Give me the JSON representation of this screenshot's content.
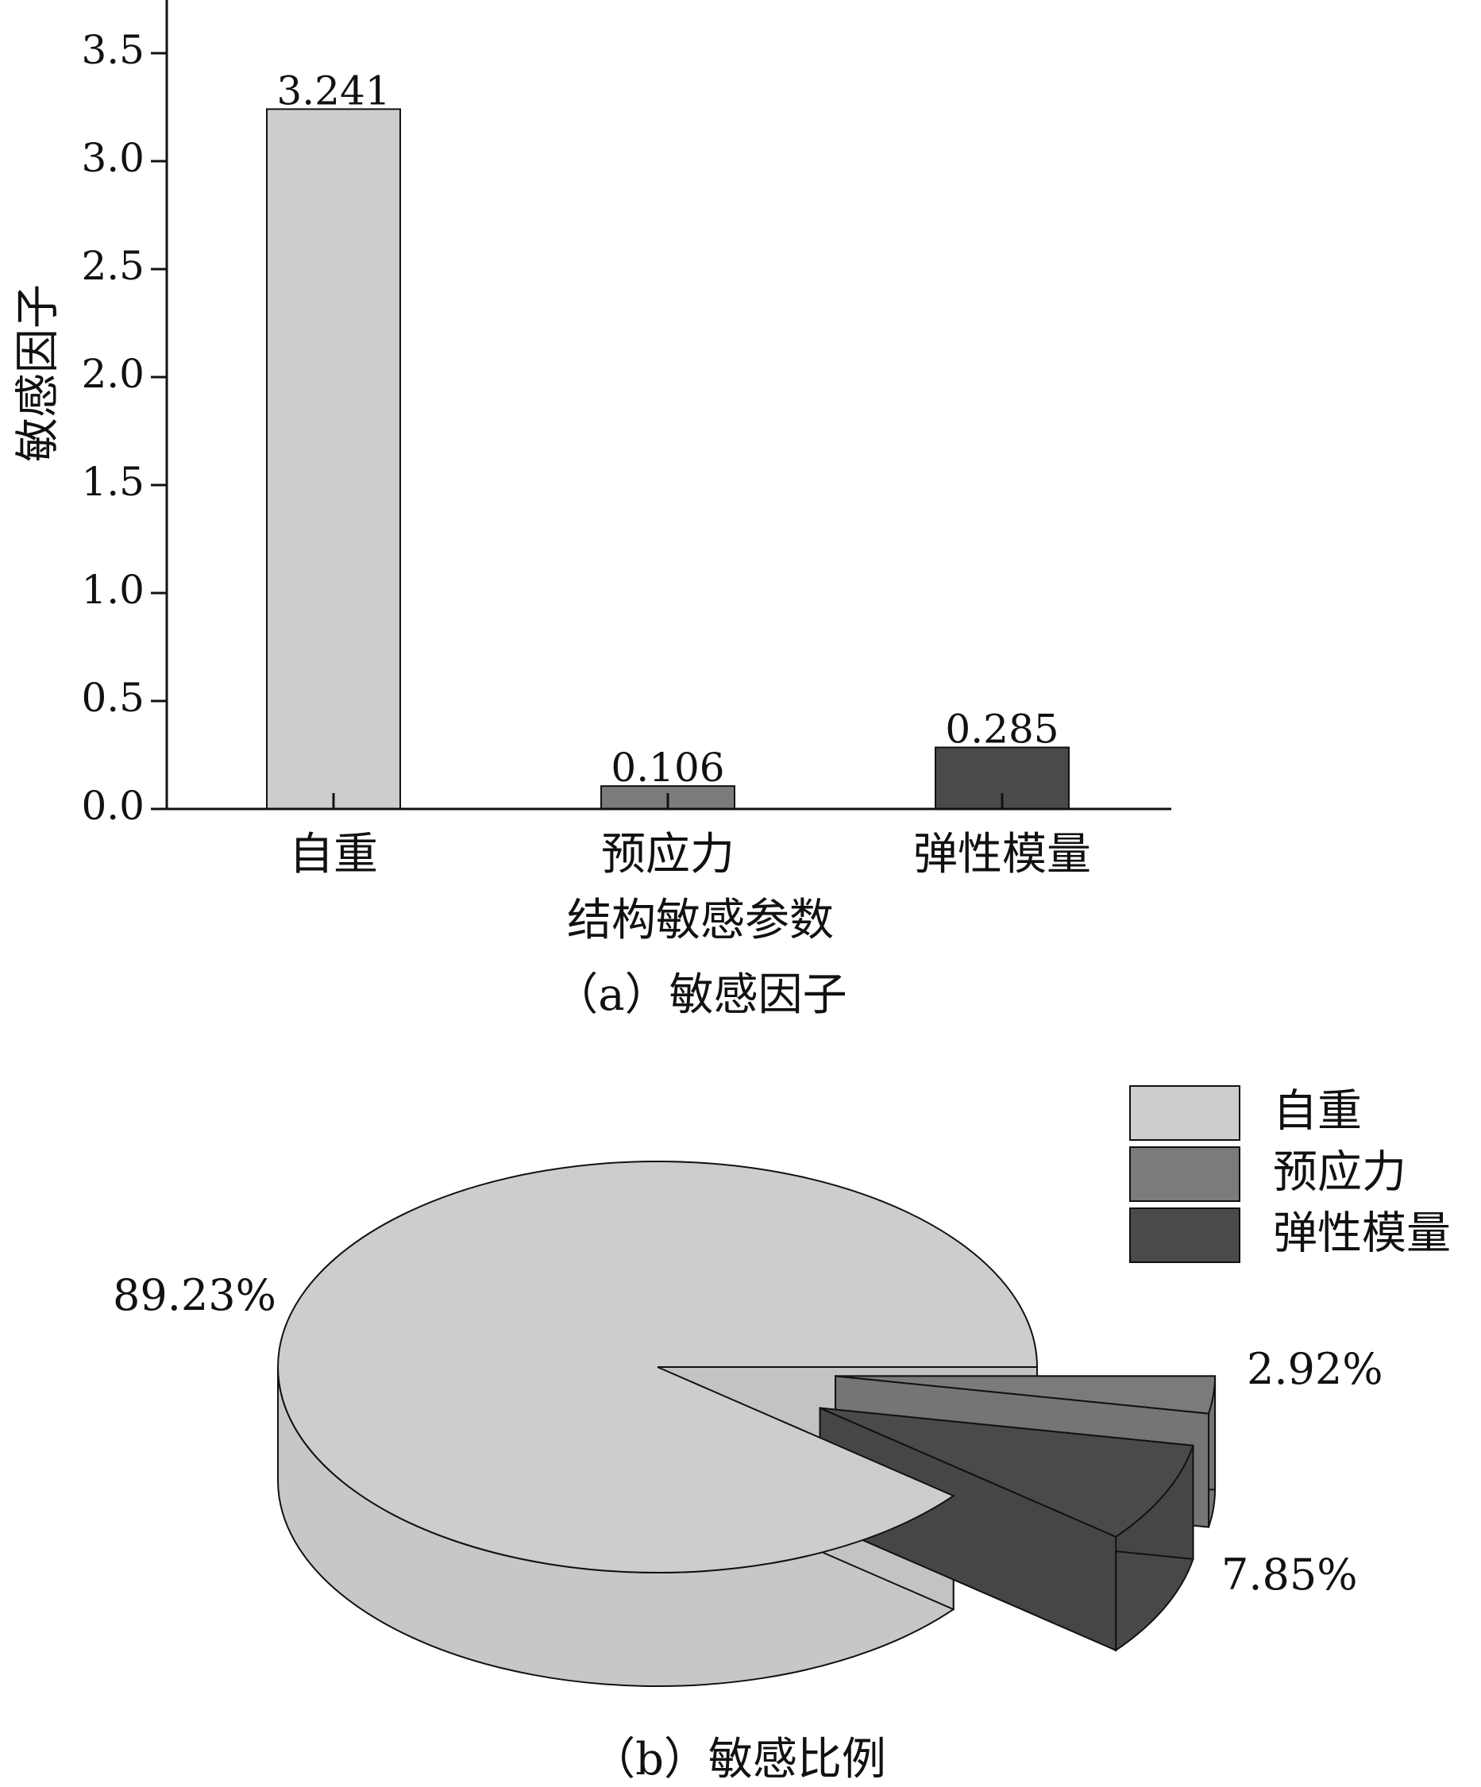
{
  "chart_data": [
    {
      "type": "bar",
      "caption": "（a）敏感因子",
      "categories": [
        "自重",
        "预应力",
        "弹性模量"
      ],
      "values": [
        3.241,
        0.106,
        0.285
      ],
      "value_labels": [
        "3.241",
        "0.106",
        "0.285"
      ],
      "colors": [
        "#cdcdcd",
        "#7b7b7b",
        "#4a4a4a"
      ],
      "xlabel": "结构敏感参数",
      "ylabel": "敏感因子",
      "ylim": [
        0,
        3.75
      ],
      "yticks": [
        0.0,
        0.5,
        1.0,
        1.5,
        2.0,
        2.5,
        3.0,
        3.5
      ],
      "ytick_labels": [
        "0.0",
        "0.5",
        "1.0",
        "1.5",
        "2.0",
        "2.5",
        "3.0",
        "3.5"
      ],
      "grid": false
    },
    {
      "type": "pie",
      "caption": "（b）敏感比例",
      "style": "3d-exploded",
      "categories": [
        "自重",
        "预应力",
        "弹性模量"
      ],
      "values": [
        89.23,
        2.92,
        7.85
      ],
      "value_labels": [
        "89.23%",
        "2.92%",
        "7.85%"
      ],
      "colors": [
        "#cdcdcd",
        "#7b7b7b",
        "#4a4a4a"
      ],
      "legend_position": "top-right"
    }
  ]
}
